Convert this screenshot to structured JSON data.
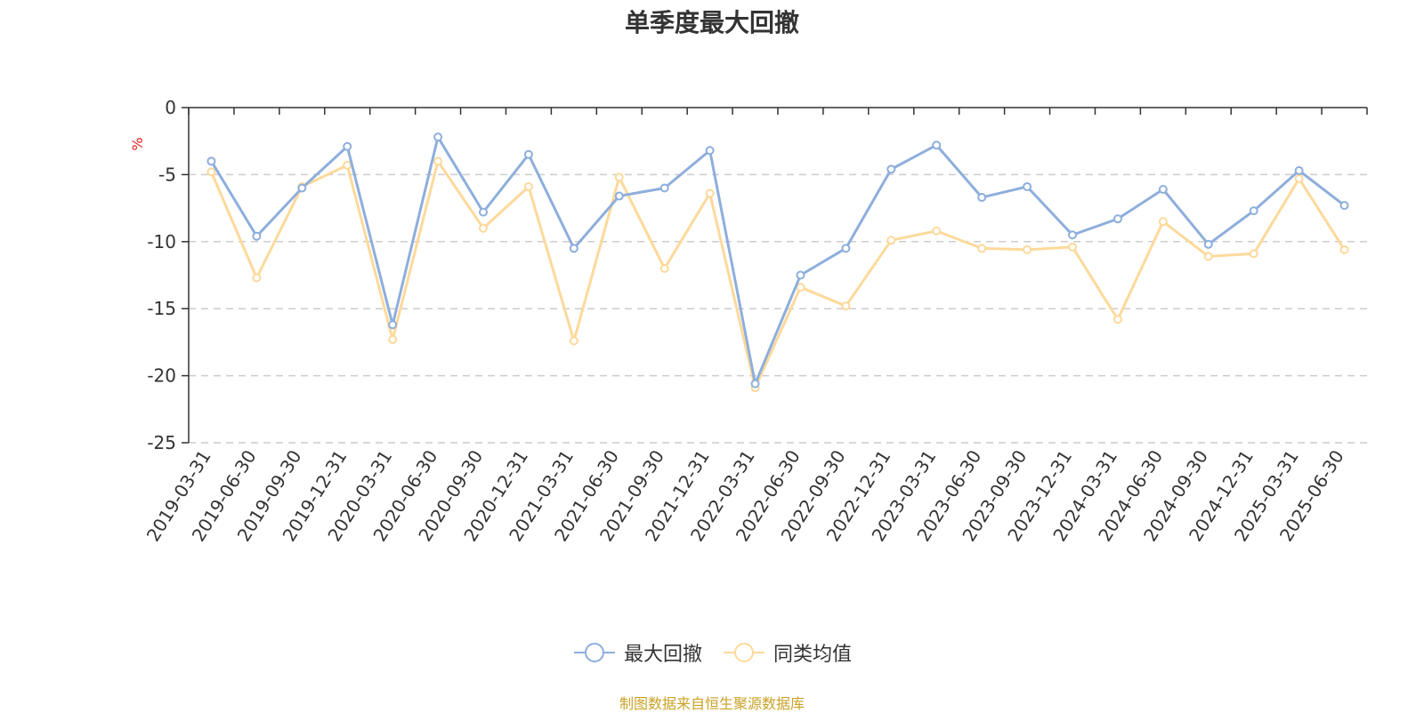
{
  "chart_data": {
    "type": "line",
    "title": "单季度最大回撤",
    "ylabel": "%",
    "ylim": [
      -25,
      0
    ],
    "yticks": [
      0,
      -5,
      -10,
      -15,
      -20,
      -25
    ],
    "grid": true,
    "legend_position": "bottom-center",
    "categories": [
      "2019-03-31",
      "2019-06-30",
      "2019-09-30",
      "2019-12-31",
      "2020-03-31",
      "2020-06-30",
      "2020-09-30",
      "2020-12-31",
      "2021-03-31",
      "2021-06-30",
      "2021-09-30",
      "2021-12-31",
      "2022-03-31",
      "2022-06-30",
      "2022-09-30",
      "2022-12-31",
      "2023-03-31",
      "2023-06-30",
      "2023-09-30",
      "2023-12-31",
      "2024-03-31",
      "2024-06-30",
      "2024-09-30",
      "2024-12-31",
      "2025-03-31",
      "2025-06-30"
    ],
    "series": [
      {
        "name": "最大回撤",
        "color": "#8eaedc",
        "values": [
          -4.0,
          -9.6,
          -6.0,
          -2.9,
          -16.2,
          -2.2,
          -7.8,
          -3.5,
          -10.5,
          -6.6,
          -6.0,
          -3.2,
          -20.6,
          -12.5,
          -10.5,
          -4.6,
          -2.8,
          -6.7,
          -5.9,
          -9.5,
          -8.3,
          -6.1,
          -10.2,
          -7.7,
          -4.7,
          -7.3
        ]
      },
      {
        "name": "同类均值",
        "color": "#fdd99b",
        "values": [
          -4.8,
          -12.7,
          -5.9,
          -4.3,
          -17.3,
          -4.0,
          -9.0,
          -5.9,
          -17.4,
          -5.2,
          -12.0,
          -6.4,
          -20.9,
          -13.4,
          -14.8,
          -9.9,
          -9.2,
          -10.5,
          -10.6,
          -10.4,
          -15.8,
          -8.5,
          -11.1,
          -10.9,
          -5.3,
          -10.6
        ]
      }
    ]
  },
  "source_note": "制图数据来自恒生聚源数据库"
}
